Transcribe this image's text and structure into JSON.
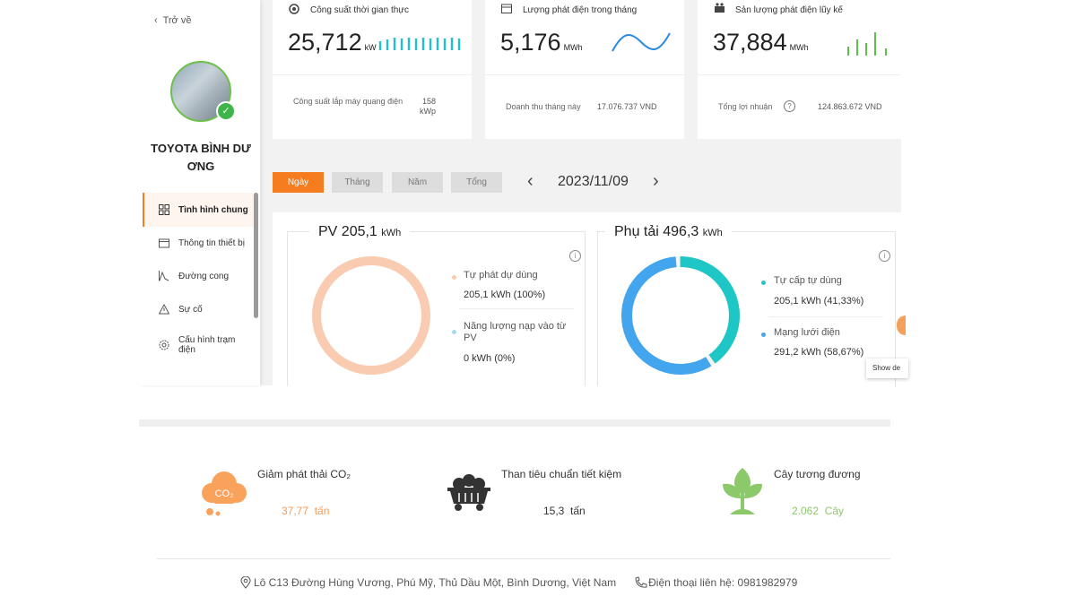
{
  "back": "Trở về",
  "station": {
    "name": "TOYOTA BÌNH DƯƠNG"
  },
  "menu": [
    "Tình hình chung",
    "Thông tin thiết bị",
    "Đường cong",
    "Sự cố",
    "Cấu hình trạm điện"
  ],
  "cards": [
    {
      "title": "Công suất thời gian thực",
      "value": "25,712",
      "unit": "kW",
      "note_label": "Công suất lắp máy quang điện",
      "note_value": "158 kWp"
    },
    {
      "title": "Lượng phát điện trong tháng",
      "value": "5,176",
      "unit": "MWh",
      "note_label": "Doanh thu tháng này",
      "note_value": "17.076.737 VND"
    },
    {
      "title": "Sản lượng phát điện lũy kế",
      "value": "37,884",
      "unit": "MWh",
      "note_label": "Tổng lợi nhuận",
      "note_value": "124.863.672 VND"
    }
  ],
  "tabs": [
    "Ngày",
    "Tháng",
    "Năm",
    "Tổng"
  ],
  "date": "2023/11/09",
  "pv": {
    "title": "PV 205,1",
    "unit": "kWh",
    "items": [
      {
        "label": "Tự phát dự dùng",
        "amount": "205,1 kWh",
        "share": 100,
        "share_label": "(100%)",
        "color": "#f9cbb0"
      },
      {
        "label": "Năng lượng nạp vào từ PV",
        "amount": "0 kWh",
        "share": 0,
        "share_label": "(0%)",
        "color": "#a9d7ef"
      }
    ]
  },
  "load": {
    "title": "Phụ tải 496,3",
    "unit": "kWh",
    "items": [
      {
        "label": "Tự cấp tự dùng",
        "amount": "205,1 kWh",
        "share": 41.33,
        "share_label": "(41,33%)",
        "color": "#1fc6c6"
      },
      {
        "label": "Mạng lưới điện",
        "amount": "291,2 kWh",
        "share": 58.67,
        "share_label": "(58,67%)",
        "color": "#43a5ee"
      }
    ]
  },
  "tooltip": "Show de",
  "savings": [
    {
      "label": "Giảm phát thải CO₂",
      "value": "37,77",
      "unit": "tấn",
      "icon_text": "CO₂"
    },
    {
      "label": "Than tiêu chuẩn tiết kiệm",
      "value": "15,3",
      "unit": "tấn"
    },
    {
      "label": "Cây tương đương",
      "value": "2.062",
      "unit": "Cây"
    }
  ],
  "footer": {
    "address": "Lô C13 Đường Hùng Vương, Phú Mỹ, Thủ Dầu Một, Bình Dương, Việt Nam",
    "phone": "Điện thoại liên hệ: 0981982979"
  }
}
